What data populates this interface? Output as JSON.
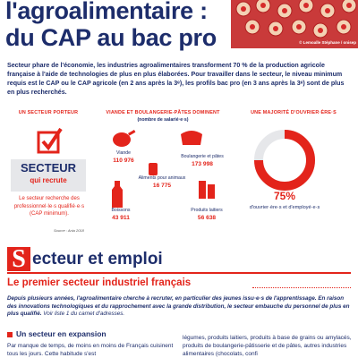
{
  "header": {
    "title_line1": "l'agroalimentaire :",
    "title_line2": "du CAP au bac pro",
    "photo_credit": "© Lemoalle Stéphane / onisep"
  },
  "intro": "Secteur phare de l'économie, les industries agroalimentaires transforment 70 % de la production agricole française à l'aide de technologies de plus en plus élaborées. Pour travailler dans le secteur, le niveau minimum requis est le CAP ou le CAP agricole (en 2 ans après la 3ᵉ), les profils bac pro (en 3 ans après la 3ᵉ) sont de plus en plus recherchés.",
  "infographic": {
    "col1": {
      "heading": "UN SECTEUR PORTEUR",
      "box_title": "SECTEUR",
      "box_subtitle": "qui recrute",
      "text": "Le secteur recherche des professionnel·le·s qualifié·e·s (CAP minimum)."
    },
    "col2": {
      "heading": "VIANDE ET BOULANGERIE-PÂTES DOMINENT",
      "subheading": "(nombre de salarié·e·s)",
      "items": [
        {
          "label": "Viande",
          "value": "110 976"
        },
        {
          "label": "Boulangerie et pâtes",
          "value": "173 998"
        },
        {
          "label": "Aliments pour animaux",
          "value": "16 775"
        },
        {
          "label": "Boissons",
          "value": "43 911"
        },
        {
          "label": "Produits laitiers",
          "value": "56 638"
        }
      ]
    },
    "col3": {
      "heading": "UNE MAJORITÉ D'OUVRIER·ÈRE·S",
      "percent": "75%",
      "text": "d'ouvrier·ère·s et d'employé·e·s"
    },
    "source": "Source : Ania 2018"
  },
  "section": {
    "initial": "S",
    "title_rest": "ecteur et emploi",
    "subtitle": "Le premier secteur industriel français",
    "lead": "Depuis plusieurs années, l'agroalimentaire cherche à recruter, en particulier des jeunes issu·e·s de l'apprentissage. En raison des innovations technologiques et du rapprochement avec la grande distribution, le secteur embauche du personnel de plus en plus qualifié.",
    "lead_ref": "Voir liste 1 du carnet d'adresses.",
    "heading": "Un secteur en expansion",
    "col_left": "Par manque de temps, de moins en moins de Français cuisinent tous les jours. Cette habitude s'est",
    "col_right": "légumes, produits laitiers, produits à base de grains ou amylacés, produits de boulangerie-pâtisserie et de pâtes, autres industries alimentaires (chocolats, confi"
  }
}
